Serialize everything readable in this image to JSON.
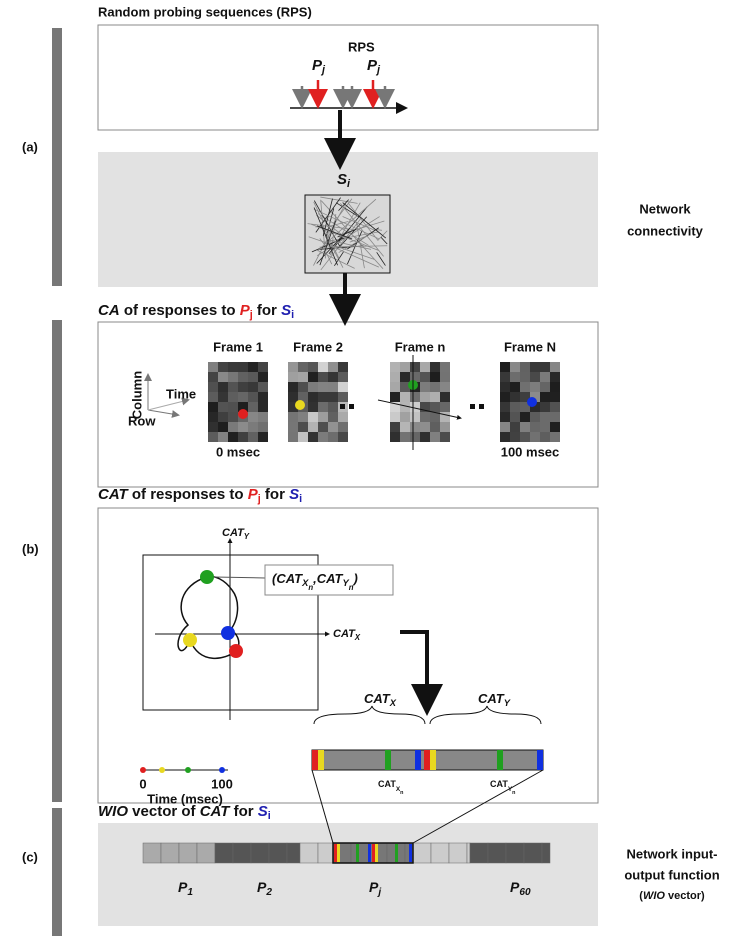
{
  "section_a": {
    "label": "(a)",
    "title": "Random probing sequences (RPS)",
    "rps_label": "RPS",
    "probe_labels": [
      [
        "P",
        "j"
      ],
      [
        "P",
        "j"
      ]
    ],
    "stimulus": [
      "S",
      "i"
    ],
    "side_label": [
      "Network",
      "connectivity"
    ]
  },
  "section_b": {
    "label": "(b)",
    "ca_title": [
      "CA",
      " of responses to ",
      "P",
      "j",
      " for ",
      "S",
      "i"
    ],
    "axes": {
      "column": "Column",
      "row": "Row",
      "time": "Time"
    },
    "frames": [
      {
        "title": "Frame 1",
        "time": "0 msec"
      },
      {
        "title": "Frame 2"
      },
      {
        "title": "Frame n"
      },
      {
        "title": "Frame N",
        "time": "100 msec"
      }
    ],
    "cat_title": [
      "CAT",
      " of responses to ",
      "P",
      "j",
      " for ",
      "S",
      "i"
    ],
    "cat_y": [
      "CAT",
      "Y"
    ],
    "cat_x": [
      "CAT",
      "X"
    ],
    "callout": [
      "(CAT",
      "X",
      "n",
      ",CAT",
      "Y",
      "n",
      ")"
    ],
    "time_ticks": [
      "0",
      "100"
    ],
    "time_label": "Time (msec)",
    "vector_braces": [
      [
        "CAT",
        "X"
      ],
      [
        "CAT",
        "Y"
      ]
    ],
    "vector_marks": [
      [
        "CAT",
        "X",
        "n"
      ],
      [
        "CAT",
        "Y",
        "n"
      ]
    ]
  },
  "section_c": {
    "label": "(c)",
    "wio_title": [
      "WIO",
      " vector of ",
      "CAT",
      " for ",
      "S",
      "i"
    ],
    "segments": [
      [
        "P",
        "1"
      ],
      [
        "P",
        "2"
      ],
      [
        "P",
        "j"
      ],
      [
        "P",
        "60"
      ]
    ],
    "side_label": [
      "Network input-",
      "output function"
    ],
    "side_note": [
      "(",
      "WIO",
      " vector)"
    ]
  }
}
